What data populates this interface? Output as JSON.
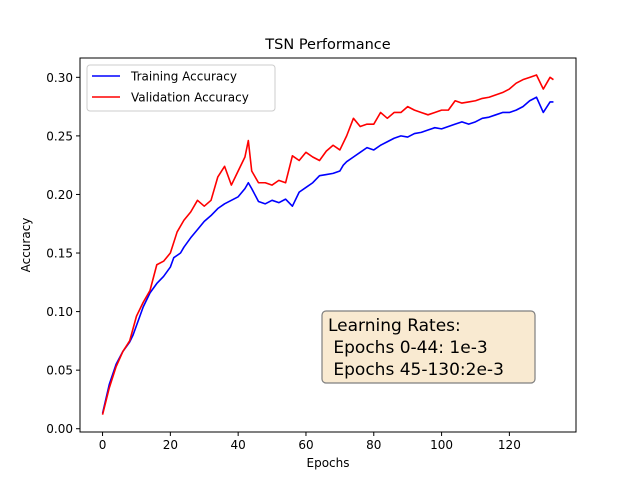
{
  "chart_data": {
    "type": "line",
    "title": "TSN Performance",
    "xlabel": "Epochs",
    "ylabel": "Accuracy",
    "xlim": [
      -6.65,
      139.65
    ],
    "ylim": [
      -0.0028,
      0.3165
    ],
    "xticks": [
      0,
      20,
      40,
      60,
      80,
      100,
      120
    ],
    "yticks": [
      0.0,
      0.05,
      0.1,
      0.15,
      0.2,
      0.25,
      0.3
    ],
    "ytick_labels": [
      "0.00",
      "0.05",
      "0.10",
      "0.15",
      "0.20",
      "0.25",
      "0.30"
    ],
    "grid": false,
    "legend_position": "top-left",
    "series": [
      {
        "name": "Training Accuracy",
        "color": "#0000ff",
        "x": [
          0,
          2,
          4,
          6,
          8,
          9,
          10,
          12,
          14,
          16,
          18,
          20,
          21,
          22,
          23,
          24,
          26,
          28,
          30,
          32,
          34,
          36,
          38,
          40,
          42,
          43,
          44,
          46,
          48,
          50,
          52,
          54,
          56,
          58,
          60,
          62,
          64,
          66,
          68,
          70,
          71,
          72,
          74,
          76,
          78,
          80,
          82,
          84,
          86,
          88,
          90,
          92,
          94,
          96,
          98,
          100,
          102,
          104,
          106,
          108,
          110,
          112,
          114,
          116,
          118,
          120,
          122,
          124,
          126,
          128,
          130,
          132,
          133
        ],
        "y": [
          0.013,
          0.038,
          0.055,
          0.066,
          0.074,
          0.08,
          0.088,
          0.104,
          0.116,
          0.124,
          0.13,
          0.138,
          0.146,
          0.148,
          0.15,
          0.155,
          0.163,
          0.17,
          0.177,
          0.182,
          0.188,
          0.192,
          0.195,
          0.198,
          0.205,
          0.21,
          0.205,
          0.194,
          0.192,
          0.195,
          0.193,
          0.196,
          0.19,
          0.202,
          0.206,
          0.21,
          0.216,
          0.217,
          0.218,
          0.22,
          0.225,
          0.228,
          0.232,
          0.236,
          0.24,
          0.238,
          0.242,
          0.245,
          0.248,
          0.25,
          0.249,
          0.252,
          0.253,
          0.255,
          0.257,
          0.256,
          0.258,
          0.26,
          0.262,
          0.26,
          0.262,
          0.265,
          0.266,
          0.268,
          0.27,
          0.27,
          0.272,
          0.275,
          0.28,
          0.283,
          0.27,
          0.279,
          0.279
        ]
      },
      {
        "name": "Validation Accuracy",
        "color": "#ff0000",
        "x": [
          0,
          2,
          4,
          6,
          8,
          10,
          12,
          14,
          16,
          18,
          20,
          22,
          24,
          26,
          28,
          30,
          32,
          34,
          36,
          38,
          40,
          42,
          43,
          44,
          46,
          48,
          50,
          52,
          54,
          56,
          58,
          60,
          62,
          64,
          66,
          68,
          70,
          72,
          74,
          76,
          78,
          80,
          82,
          84,
          86,
          88,
          90,
          92,
          94,
          96,
          98,
          100,
          102,
          104,
          106,
          108,
          110,
          112,
          114,
          116,
          118,
          120,
          122,
          124,
          126,
          128,
          130,
          132,
          133
        ],
        "y": [
          0.012,
          0.035,
          0.053,
          0.066,
          0.075,
          0.096,
          0.108,
          0.118,
          0.14,
          0.143,
          0.15,
          0.168,
          0.178,
          0.185,
          0.195,
          0.19,
          0.195,
          0.215,
          0.224,
          0.208,
          0.22,
          0.232,
          0.246,
          0.22,
          0.21,
          0.21,
          0.208,
          0.212,
          0.21,
          0.233,
          0.229,
          0.236,
          0.232,
          0.229,
          0.237,
          0.242,
          0.238,
          0.25,
          0.265,
          0.258,
          0.26,
          0.26,
          0.27,
          0.265,
          0.27,
          0.27,
          0.275,
          0.272,
          0.27,
          0.268,
          0.27,
          0.272,
          0.272,
          0.28,
          0.278,
          0.279,
          0.28,
          0.282,
          0.283,
          0.285,
          0.287,
          0.29,
          0.295,
          0.298,
          0.3,
          0.302,
          0.29,
          0.3,
          0.298
        ]
      }
    ],
    "annotation": {
      "lines": [
        "Learning Rates:",
        " Epochs 0-44: 1e-3",
        " Epochs 45-130:2e-3"
      ],
      "box_fill": "#f9ead1",
      "box_stroke": "#7f7f7f"
    }
  }
}
